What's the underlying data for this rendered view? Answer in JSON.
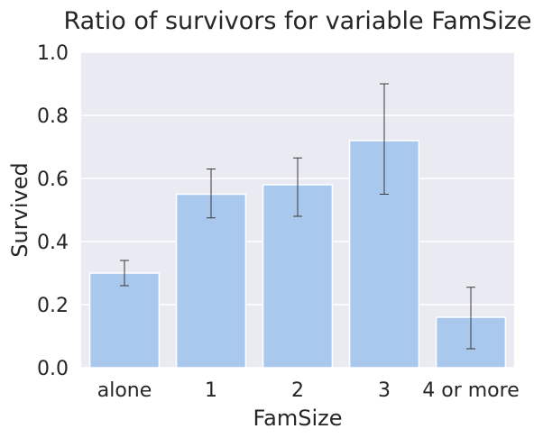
{
  "chart_data": {
    "type": "bar",
    "title": "Ratio of survivors for variable FamSize",
    "xlabel": "FamSize",
    "ylabel": "Survived",
    "categories": [
      "alone",
      "1",
      "2",
      "3",
      "4 or more"
    ],
    "values": [
      0.3,
      0.55,
      0.58,
      0.72,
      0.16
    ],
    "error_low": [
      0.26,
      0.475,
      0.48,
      0.55,
      0.06
    ],
    "error_high": [
      0.34,
      0.63,
      0.665,
      0.9,
      0.255
    ],
    "ylim": [
      0,
      1
    ],
    "yticks": [
      "0.0",
      "0.2",
      "0.4",
      "0.6",
      "0.8",
      "1.0"
    ],
    "ytick_values": [
      0,
      0.2,
      0.4,
      0.6,
      0.8,
      1.0
    ],
    "grid": true,
    "colors": {
      "bar": "#a9c8ee",
      "plot_background": "#eaeaf2",
      "grid": "#ffffff",
      "errorbar": "#3a3a3a",
      "text": "#262626"
    }
  }
}
